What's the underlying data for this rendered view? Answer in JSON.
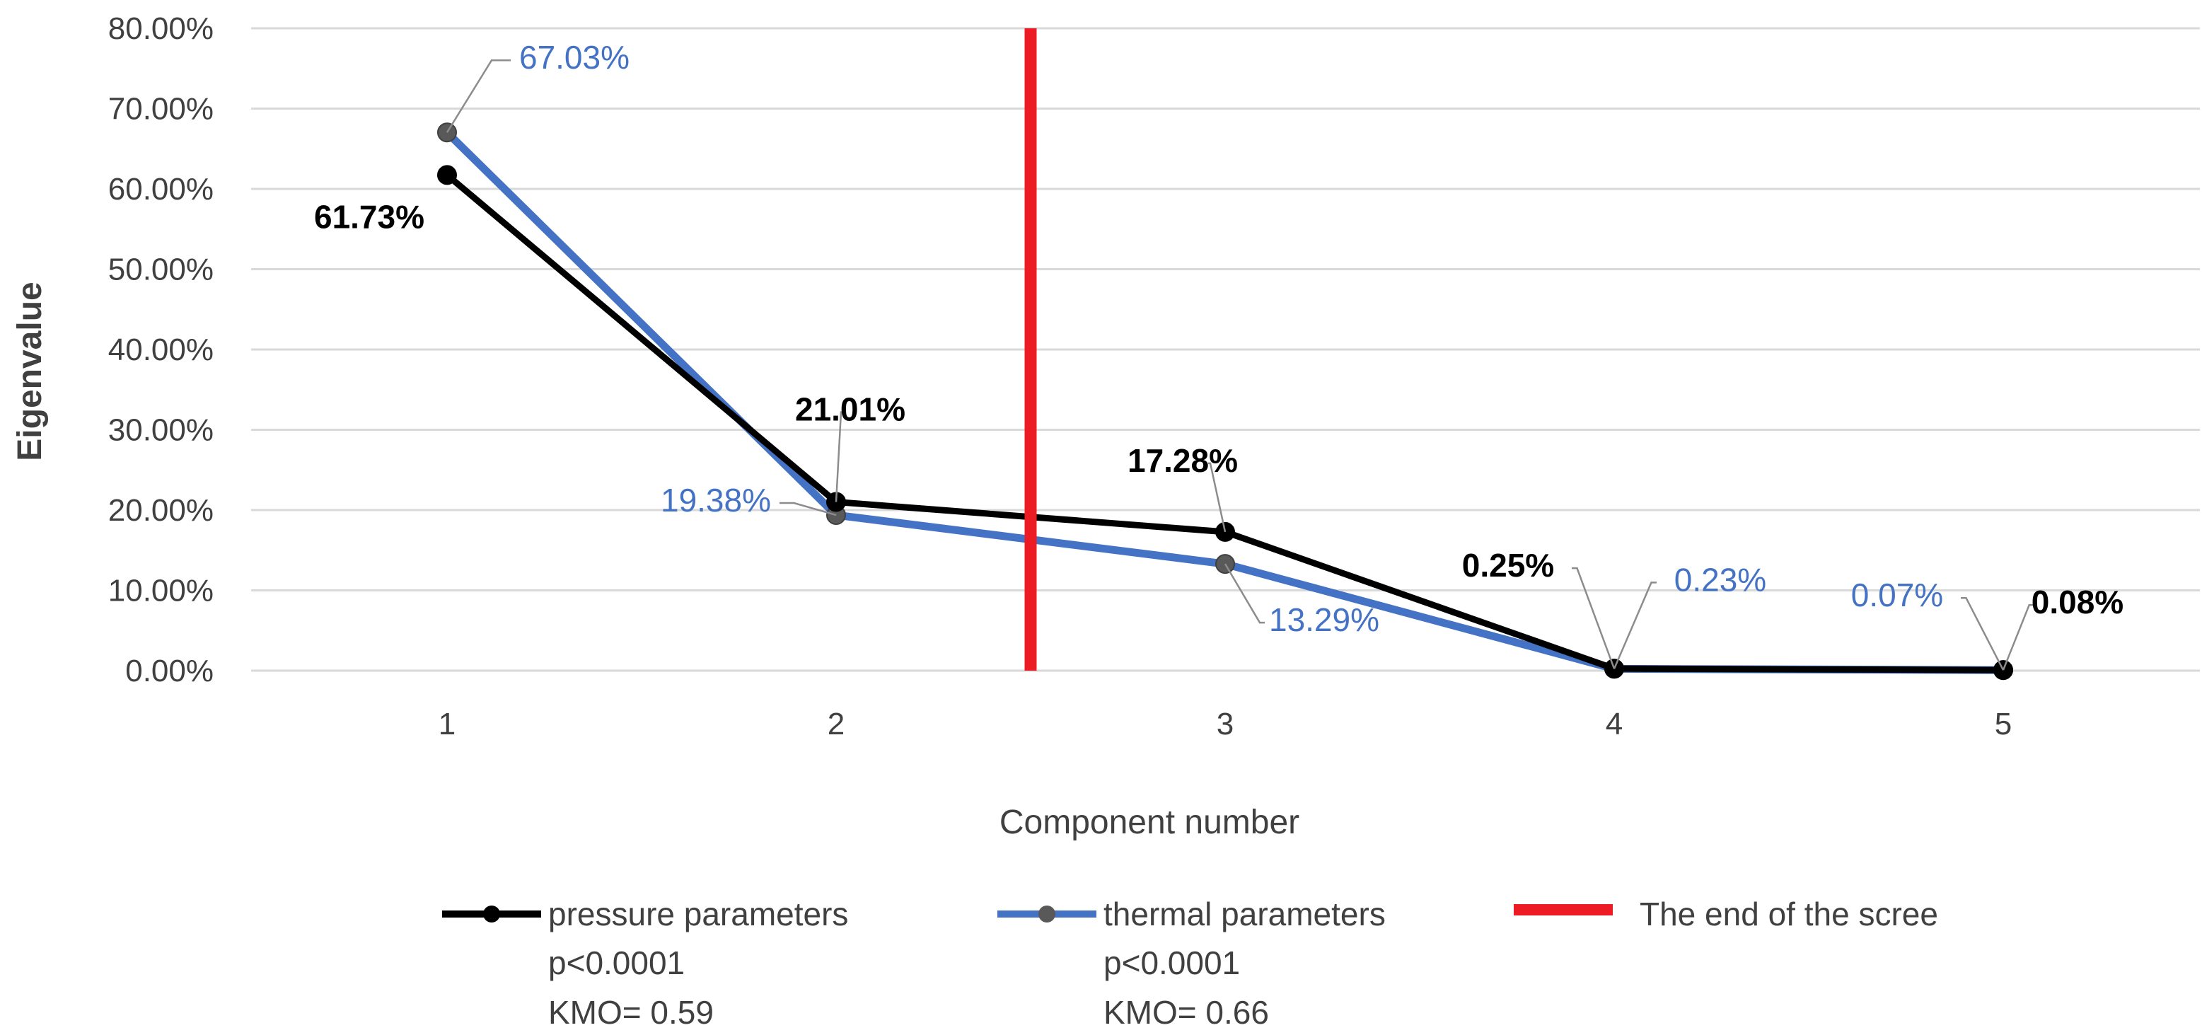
{
  "chart_data": {
    "type": "line",
    "xlabel": "Component number",
    "ylabel": "Eigenvalue",
    "x": [
      1,
      2,
      3,
      4,
      5
    ],
    "ylim": [
      0,
      80
    ],
    "y_ticks": [
      "0.00%",
      "10.00%",
      "20.00%",
      "30.00%",
      "40.00%",
      "50.00%",
      "60.00%",
      "70.00%",
      "80.00%"
    ],
    "grid": true,
    "legend_position": "bottom",
    "series": [
      {
        "name": "pressure parameters",
        "values": [
          61.73,
          21.01,
          17.28,
          0.25,
          0.08
        ],
        "labels": [
          "61.73%",
          "21.01%",
          "17.28%",
          "0.25%",
          "0.08%"
        ],
        "legend_lines": [
          "p<0.0001",
          "KMO= 0.59"
        ],
        "color": "#000000"
      },
      {
        "name": "thermal parameters",
        "values": [
          67.03,
          19.38,
          13.29,
          0.23,
          0.07
        ],
        "labels": [
          "67.03%",
          "19.38%",
          "13.29%",
          "0.23%",
          "0.07%"
        ],
        "legend_lines": [
          "p<0.0001",
          "KMO= 0.66"
        ],
        "color": "#4472C4"
      }
    ],
    "vertical_marker": {
      "name": "The end of the scree",
      "x": 2.5,
      "color": "#ED1C24"
    }
  }
}
